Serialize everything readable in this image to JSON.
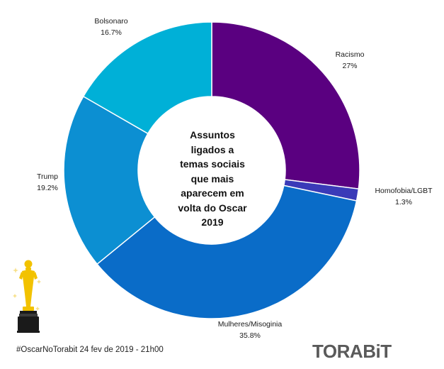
{
  "chart_data": {
    "type": "pie",
    "variant": "donut",
    "title_lines": [
      "Assuntos",
      "ligados a",
      "temas sociais",
      "que mais",
      "aparecem em",
      "volta do Oscar",
      "2019"
    ],
    "categories": [
      "Racismo",
      "Homofobia/LGBT",
      "Mulheres/Misoginia",
      "Trump",
      "Bolsonaro"
    ],
    "values": [
      27,
      1.3,
      35.8,
      19.2,
      16.7
    ],
    "value_labels": [
      "27%",
      "1.3%",
      "35.8%",
      "19.2%",
      "16.7%"
    ],
    "colors": [
      "#5a0080",
      "#3a3ab8",
      "#0a6cc8",
      "#0c8fd2",
      "#00b0d7"
    ],
    "legend": "none"
  },
  "footer": {
    "hashtag_text": "#OscarNoTorabit 24 fev de 2019 - 21h00",
    "brand": "TORABiT"
  },
  "decoration": {
    "trophy_icon": "oscar-statuette-icon",
    "trophy_colors": [
      "#f2c200",
      "#1a1a1a"
    ]
  }
}
